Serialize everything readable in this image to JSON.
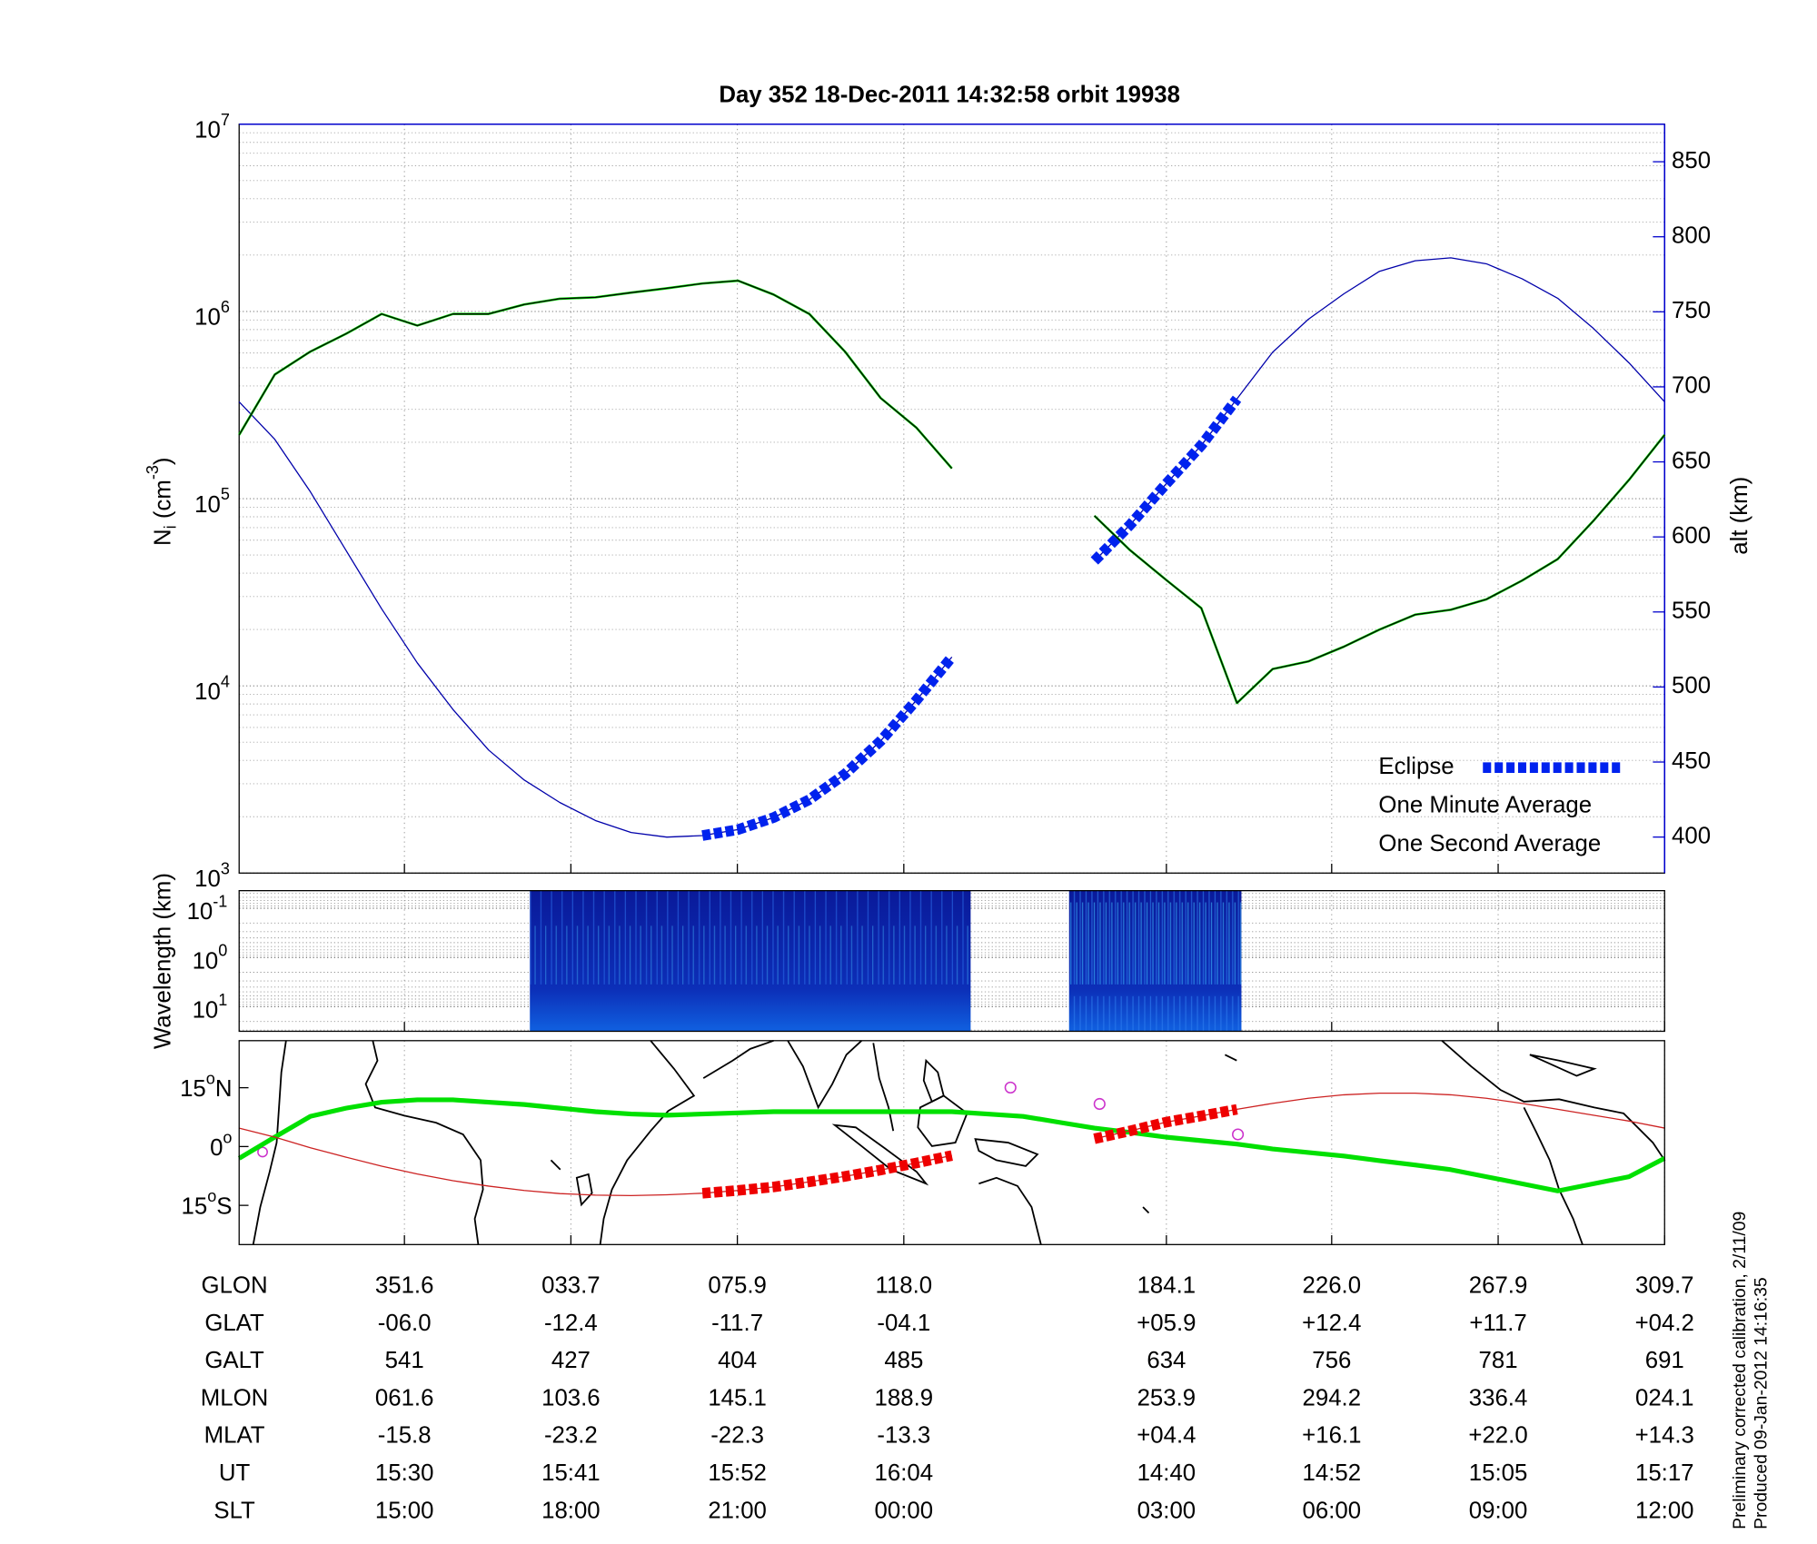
{
  "title": "Day 352  18-Dec-2011 14:32:58   orbit 19938",
  "chart_data": [
    {
      "type": "line",
      "ylabel": [
        {
          "text": "N"
        },
        {
          "text": "i",
          "shift": "sub"
        },
        {
          "text": " (cm"
        },
        {
          "text": "-3",
          "shift": "super"
        },
        {
          "text": ")"
        }
      ],
      "y2label": "alt (km)",
      "yscale": "log",
      "ylim": [
        1000,
        10000000
      ],
      "yticks": [
        {
          "value": 1000,
          "label": "10",
          "exponent": "3"
        },
        {
          "value": 10000,
          "label": "10",
          "exponent": "4"
        },
        {
          "value": 100000,
          "label": "10",
          "exponent": "5"
        },
        {
          "value": 1000000,
          "label": "10",
          "exponent": "6"
        },
        {
          "value": 10000000,
          "label": "10",
          "exponent": "7"
        }
      ],
      "y2lim": [
        376,
        875
      ],
      "y2ticks": [
        400,
        450,
        500,
        550,
        600,
        650,
        700,
        750,
        800,
        850
      ],
      "y2color": "#0000cc",
      "grid": true,
      "legend": "lower right",
      "series": [
        {
          "name": "Eclipse",
          "color": "#0022ee",
          "axis": "y2",
          "style": "thick-dashed",
          "values": [
            null,
            null,
            null,
            null,
            null,
            null,
            null,
            null,
            null,
            null,
            null,
            null,
            null,
            401,
            405,
            413,
            425,
            442,
            464,
            491,
            520,
            null,
            null,
            null,
            584,
            608,
            635,
            661,
            692,
            null,
            null,
            null,
            null,
            null,
            null,
            null,
            null,
            null,
            null,
            null,
            null
          ]
        },
        {
          "name": "One Minute Average",
          "color": "#000000",
          "style": "thin",
          "values": [
            219000,
            460000,
            610000,
            760000,
            970000,
            840000,
            970000,
            970000,
            1090000,
            1170000,
            1190000,
            1260000,
            1330000,
            1410000,
            1460000,
            1230000,
            970000,
            610000,
            345000,
            240000,
            145000,
            null,
            null,
            null,
            81000,
            53000,
            37000,
            26000,
            8100,
            12300,
            13500,
            16200,
            20000,
            24000,
            25500,
            29000,
            36500,
            47500,
            76000,
            126000,
            219000
          ]
        },
        {
          "name": "One Second Average",
          "color": "#00dd00",
          "style": "medium",
          "values": [
            219000,
            460000,
            610000,
            760000,
            970000,
            840000,
            970000,
            970000,
            1090000,
            1170000,
            1190000,
            1260000,
            1330000,
            1410000,
            1460000,
            1230000,
            970000,
            610000,
            345000,
            240000,
            145000,
            null,
            null,
            null,
            81000,
            53000,
            37000,
            26000,
            8100,
            12300,
            13500,
            16200,
            20000,
            24000,
            25500,
            29000,
            36500,
            47500,
            76000,
            126000,
            219000
          ]
        },
        {
          "color": "#0000aa",
          "axis": "y2",
          "style": "thin",
          "values": [
            690,
            665,
            630,
            591,
            552,
            516,
            485,
            458,
            438,
            423,
            411,
            403,
            400,
            401,
            405,
            413,
            425,
            442,
            464,
            491,
            520,
            null,
            null,
            null,
            584,
            608,
            635,
            661,
            692,
            723,
            745,
            762,
            777,
            784,
            786,
            782,
            772,
            759,
            739,
            716,
            690
          ]
        }
      ]
    },
    {
      "type": "spectrogram",
      "ylabel": "Wavelength (km)",
      "yscale": "log",
      "yinverted": true,
      "ylim": [
        0.044,
        31.6
      ],
      "yticks": [
        {
          "value": 0.1,
          "label": "10",
          "exponent": "-1"
        },
        {
          "value": 1,
          "label": "10",
          "exponent": "0"
        },
        {
          "value": 10,
          "label": "10",
          "exponent": "1"
        }
      ]
    },
    {
      "type": "map",
      "ylim": [
        -25,
        27
      ],
      "yticks": [
        {
          "value": 15,
          "label": "15",
          "exponent": "o",
          "suffix": "N"
        },
        {
          "value": 0,
          "label": "0",
          "exponent": "o"
        },
        {
          "value": -15,
          "label": "15",
          "exponent": "o",
          "suffix": "S"
        }
      ],
      "series": [
        {
          "color": "#00e000",
          "style": "thick",
          "values": [
            -3.0,
            2.4,
            7.7,
            9.8,
            11.3,
            11.9,
            11.9,
            11.3,
            10.7,
            9.8,
            8.9,
            8.3,
            8.0,
            8.3,
            8.6,
            8.9,
            8.9,
            8.9,
            8.9,
            8.9,
            8.9,
            8.3,
            7.7,
            6.2,
            4.7,
            3.6,
            2.4,
            1.5,
            0.6,
            -0.6,
            -1.5,
            -2.4,
            -3.6,
            -4.7,
            -5.9,
            -7.7,
            -9.5,
            -11.3,
            -9.5,
            -7.7,
            -3.0
          ]
        },
        {
          "color": "#cc2222",
          "style": "thin",
          "values": [
            4.7,
            2.4,
            -0.3,
            -2.7,
            -5.0,
            -7.0,
            -8.7,
            -10.1,
            -11.2,
            -12.0,
            -12.4,
            -12.5,
            -12.3,
            -11.9,
            -11.2,
            -10.3,
            -9.0,
            -7.6,
            -6.0,
            -4.2,
            -2.3,
            null,
            null,
            null,
            2.0,
            4.0,
            6.2,
            7.8,
            9.5,
            11.0,
            12.3,
            13.2,
            13.6,
            13.6,
            13.2,
            12.3,
            11.0,
            9.5,
            8.0,
            6.5,
            4.7
          ]
        },
        {
          "color": "#ee0000",
          "style": "thick-dashed",
          "values": [
            null,
            null,
            null,
            null,
            null,
            null,
            null,
            null,
            null,
            null,
            null,
            null,
            null,
            -11.9,
            -11.2,
            -10.3,
            -9.0,
            -7.6,
            -6.0,
            -4.2,
            -2.3,
            null,
            null,
            null,
            2.0,
            4.0,
            6.2,
            7.8,
            9.5,
            null,
            null,
            null,
            null,
            null,
            null,
            null,
            null,
            null,
            null,
            null,
            null
          ]
        }
      ]
    }
  ],
  "ephemeris": {
    "rows": [
      {
        "label": "GLON",
        "values": [
          "351.6",
          "033.7",
          "075.9",
          "118.0",
          "184.1",
          "226.0",
          "267.9",
          "309.7"
        ]
      },
      {
        "label": "GLAT",
        "values": [
          "-06.0",
          "-12.4",
          "-11.7",
          "-04.1",
          "+05.9",
          "+12.4",
          "+11.7",
          "+04.2"
        ]
      },
      {
        "label": "GALT",
        "values": [
          "541",
          "427",
          "404",
          "485",
          "634",
          "756",
          "781",
          "691"
        ]
      },
      {
        "label": "MLON",
        "values": [
          "061.6",
          "103.6",
          "145.1",
          "188.9",
          "253.9",
          "294.2",
          "336.4",
          "024.1"
        ]
      },
      {
        "label": "MLAT",
        "values": [
          "-15.8",
          "-23.2",
          "-22.3",
          "-13.3",
          "+04.4",
          "+16.1",
          "+22.0",
          "+14.3"
        ]
      },
      {
        "label": "UT",
        "values": [
          "15:30",
          "15:41",
          "15:52",
          "16:04",
          "14:40",
          "14:52",
          "15:05",
          "15:17"
        ]
      },
      {
        "label": "SLT",
        "values": [
          "15:00",
          "18:00",
          "21:00",
          "00:00",
          "03:00",
          "06:00",
          "09:00",
          "12:00"
        ]
      }
    ]
  },
  "notes": [
    "Preliminary corrected calibration, 2/11/09",
    "Produced 09-Jan-2012 14:16:35"
  ]
}
